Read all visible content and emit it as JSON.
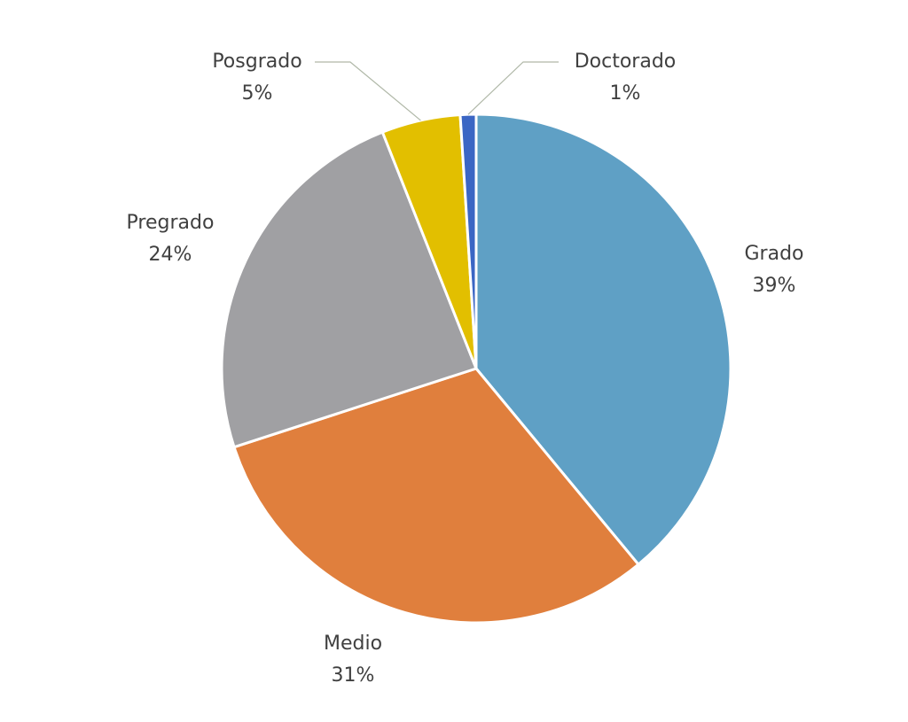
{
  "chart_data": {
    "type": "pie",
    "categories": [
      "Grado",
      "Medio",
      "Pregrado",
      "Posgrado",
      "Doctorado"
    ],
    "values": [
      39,
      31,
      24,
      5,
      1
    ],
    "value_labels": [
      "39%",
      "31%",
      "24%",
      "5%",
      "1%"
    ],
    "colors": [
      "#5fa0c5",
      "#e07f3d",
      "#a0a0a3",
      "#e2bf00",
      "#3b66c4"
    ]
  }
}
